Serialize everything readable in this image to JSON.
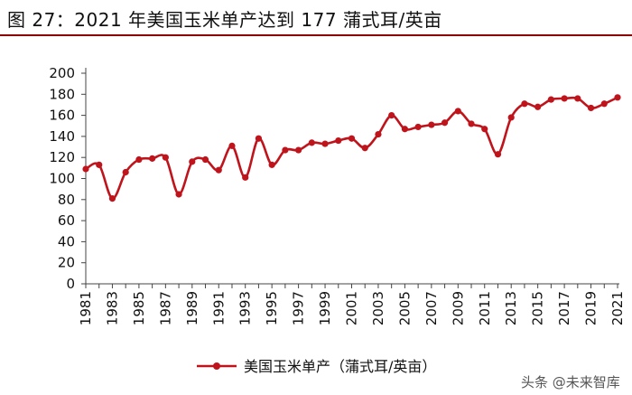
{
  "header": {
    "title": "图 27：2021 年美国玉米单产达到 177 蒲式耳/英亩"
  },
  "colors": {
    "series": "#c0141c",
    "title_rule": "#8b0000",
    "axis": "#444444"
  },
  "chart_data": {
    "type": "line",
    "x": [
      1981,
      1982,
      1983,
      1984,
      1985,
      1986,
      1987,
      1988,
      1989,
      1990,
      1991,
      1992,
      1993,
      1994,
      1995,
      1996,
      1997,
      1998,
      1999,
      2000,
      2001,
      2002,
      2003,
      2004,
      2005,
      2006,
      2007,
      2008,
      2009,
      2010,
      2011,
      2012,
      2013,
      2014,
      2015,
      2016,
      2017,
      2018,
      2019,
      2020,
      2021
    ],
    "x_tick_labels": [
      "1981",
      "1983",
      "1985",
      "1987",
      "1989",
      "1991",
      "1993",
      "1995",
      "1997",
      "1999",
      "2001",
      "2003",
      "2005",
      "2007",
      "2009",
      "2011",
      "2013",
      "2015",
      "2017",
      "2019",
      "2021"
    ],
    "series": [
      {
        "name": "美国玉米单产（蒲式耳/英亩）",
        "values": [
          109,
          113,
          81,
          106,
          118,
          119,
          120,
          85,
          116,
          118,
          108,
          131,
          101,
          138,
          113,
          127,
          127,
          134,
          133,
          136,
          138,
          129,
          142,
          160,
          147,
          149,
          151,
          153,
          164,
          152,
          147,
          123,
          158,
          171,
          168,
          175,
          176,
          176,
          167,
          171,
          177
        ]
      }
    ],
    "ylim": [
      0,
      200
    ],
    "y_ticks": [
      0,
      20,
      40,
      60,
      80,
      100,
      120,
      140,
      160,
      180,
      200
    ],
    "grid": false,
    "legend_position": "bottom"
  },
  "watermark": {
    "text": "头条 @未来智库"
  }
}
